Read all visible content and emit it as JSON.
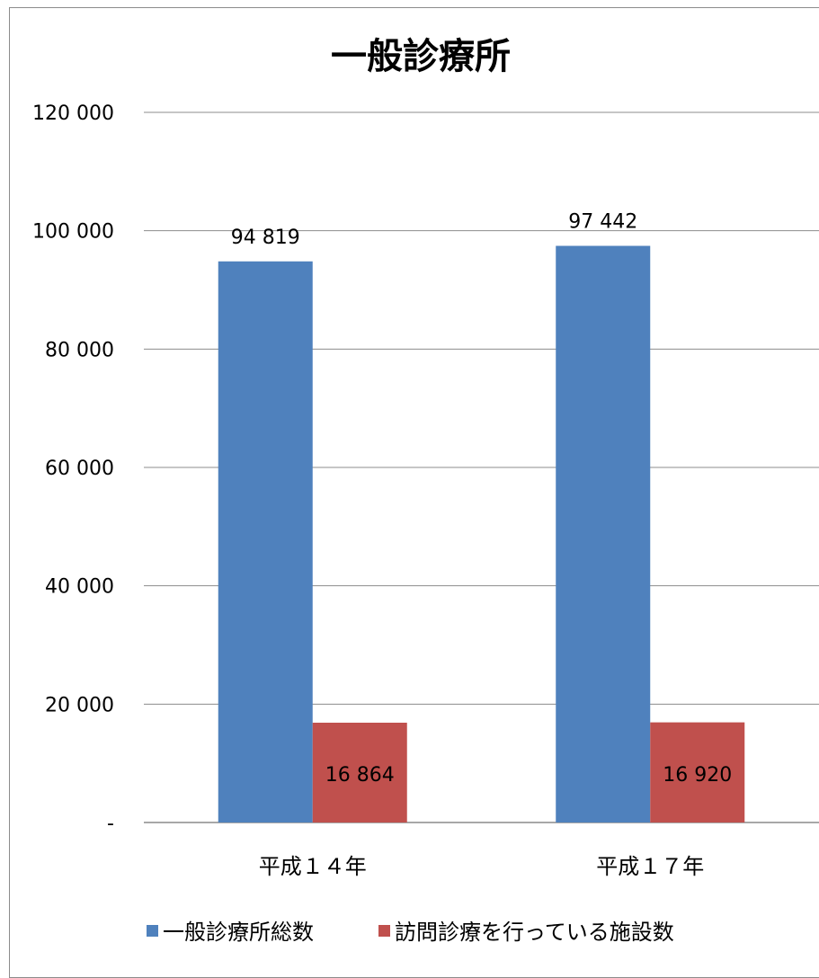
{
  "chart_data": {
    "type": "bar",
    "title": "一般診療所",
    "xlabel": "",
    "ylabel": "",
    "categories": [
      "平成１４年",
      "平成１７年"
    ],
    "series": [
      {
        "name": "一般診療所総数",
        "values": [
          94819,
          97442
        ],
        "labels": [
          "94 819",
          "97 442"
        ],
        "color": "#4f81bd"
      },
      {
        "name": "訪問診療を行っている施設数",
        "values": [
          16864,
          16920
        ],
        "labels": [
          "16 864",
          "16 920"
        ],
        "color": "#c0504d"
      }
    ],
    "ylim": [
      0,
      120000
    ],
    "yticks": [
      0,
      20000,
      40000,
      60000,
      80000,
      100000,
      120000
    ],
    "ytick_labels": [
      "-",
      "20 000",
      "40 000",
      "60 000",
      "80 000",
      "100 000",
      "120 000"
    ],
    "grid": true,
    "legend_position": "bottom",
    "colors": {
      "gridline": "#8c8c8c",
      "axis": "#8c8c8c",
      "text": "#000000"
    }
  }
}
